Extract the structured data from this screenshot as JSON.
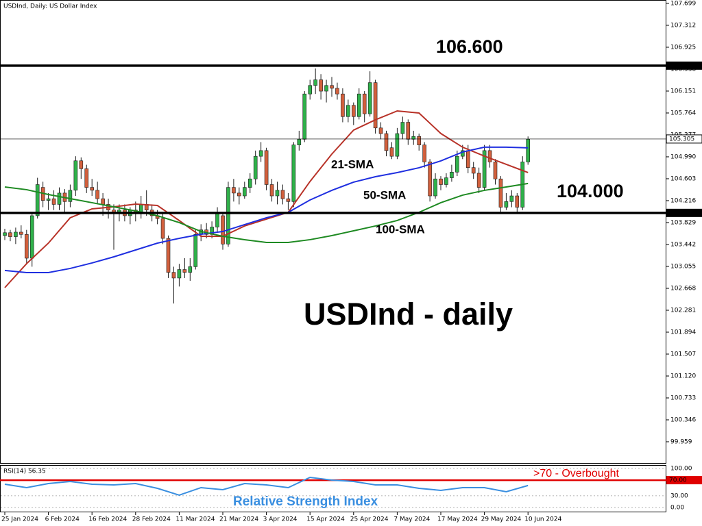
{
  "chart_data": [
    {
      "type": "candlestick",
      "title": "USDInd, Daily:  US Dollar Index",
      "categories": [
        "25 Jan 2024",
        null,
        null,
        null,
        null,
        null,
        null,
        null,
        "6 Feb 2024",
        null,
        null,
        null,
        null,
        null,
        null,
        null,
        "16 Feb 2024",
        null,
        null,
        null,
        null,
        null,
        null,
        null,
        "28 Feb 2024",
        null,
        null,
        null,
        null,
        null,
        null,
        null,
        "11 Mar 2024",
        null,
        null,
        null,
        null,
        null,
        null,
        null,
        "21 Mar 2024",
        null,
        null,
        null,
        null,
        null,
        null,
        null,
        "3 Apr 2024",
        null,
        null,
        null,
        null,
        null,
        null,
        null,
        "15 Apr 2024",
        null,
        null,
        null,
        null,
        null,
        null,
        null,
        "25 Apr 2024",
        null,
        null,
        null,
        null,
        null,
        null,
        null,
        "7 May 2024",
        null,
        null,
        null,
        null,
        null,
        null,
        null,
        "17 May 2024",
        null,
        null,
        null,
        null,
        null,
        null,
        null,
        "29 May 2024",
        null,
        null,
        null,
        null,
        null,
        null,
        null,
        "10 Jun 2024"
      ],
      "open": [
        103.6,
        103.65,
        103.58,
        103.66,
        103.62,
        103.2,
        103.95,
        104.45,
        104.22,
        104.25,
        104.15,
        104.35,
        104.2,
        104.4,
        104.92,
        104.78,
        104.45,
        104.4,
        104.25,
        104.15,
        104.05,
        104.0,
        104.05,
        103.95,
        104.05,
        104.0,
        104.15,
        104.05,
        103.95,
        103.9,
        103.55,
        102.95,
        102.85,
        103.0,
        102.95,
        103.05,
        103.62,
        103.7,
        103.62,
        103.75,
        103.95,
        103.45,
        104.45,
        104.35,
        104.3,
        104.45,
        104.6,
        105.0,
        105.1,
        104.5,
        104.3,
        104.4,
        104.25,
        104.2,
        105.2,
        105.3,
        106.1,
        106.25,
        106.35,
        106.15,
        106.25,
        106.2,
        106.1,
        105.7,
        105.9,
        105.7,
        106.1,
        105.75,
        106.3,
        105.5,
        105.4,
        105.15,
        105.0,
        105.4,
        105.6,
        105.3,
        105.35,
        105.2,
        104.9,
        104.3,
        104.6,
        104.5,
        104.62,
        104.72,
        105.0,
        105.1,
        104.8,
        104.7,
        104.45,
        105.1,
        104.9,
        104.6,
        104.1,
        104.2,
        104.3,
        104.1,
        104.9
      ],
      "high": [
        103.72,
        103.7,
        103.74,
        103.78,
        103.7,
        104.0,
        104.62,
        104.55,
        104.35,
        104.4,
        104.45,
        104.42,
        104.5,
        105.0,
        104.98,
        104.85,
        104.6,
        104.55,
        104.35,
        104.25,
        104.15,
        104.15,
        104.15,
        104.1,
        104.2,
        104.3,
        104.4,
        104.15,
        104.05,
        104.0,
        103.6,
        103.05,
        103.1,
        103.2,
        103.2,
        103.7,
        103.8,
        103.82,
        103.85,
        104.1,
        104.0,
        104.55,
        104.6,
        104.45,
        104.55,
        104.7,
        105.1,
        105.25,
        105.15,
        104.6,
        104.55,
        104.5,
        104.35,
        105.25,
        105.45,
        106.15,
        106.35,
        106.55,
        106.45,
        106.35,
        106.4,
        106.3,
        106.2,
        106.0,
        105.95,
        106.2,
        106.15,
        106.5,
        106.35,
        105.6,
        105.45,
        105.25,
        105.5,
        105.7,
        105.65,
        105.45,
        105.4,
        105.25,
        104.95,
        104.7,
        104.65,
        104.7,
        104.85,
        105.1,
        105.2,
        105.2,
        104.9,
        104.8,
        105.2,
        105.2,
        104.95,
        104.65,
        104.35,
        104.4,
        104.35,
        105.0,
        105.35
      ],
      "low": [
        103.52,
        103.5,
        103.45,
        103.55,
        103.1,
        103.05,
        103.9,
        104.1,
        104.05,
        104.05,
        104.05,
        104.0,
        104.1,
        104.3,
        104.6,
        104.35,
        104.3,
        104.15,
        103.95,
        103.9,
        103.35,
        103.85,
        103.85,
        103.8,
        103.85,
        103.9,
        103.95,
        103.85,
        103.8,
        103.45,
        102.85,
        102.4,
        102.7,
        102.85,
        102.8,
        103.0,
        103.5,
        103.55,
        103.55,
        103.65,
        103.35,
        103.4,
        104.2,
        104.15,
        104.25,
        104.35,
        104.5,
        104.9,
        104.4,
        104.2,
        104.15,
        104.15,
        104.05,
        104.1,
        105.1,
        105.25,
        106.0,
        106.1,
        106.0,
        105.95,
        106.05,
        106.0,
        105.6,
        105.6,
        105.55,
        105.65,
        105.6,
        105.7,
        105.4,
        105.3,
        105.0,
        104.95,
        104.95,
        105.3,
        105.2,
        105.2,
        105.1,
        104.8,
        104.2,
        104.25,
        104.4,
        104.45,
        104.55,
        104.65,
        104.95,
        104.7,
        104.6,
        104.35,
        104.4,
        104.8,
        104.5,
        104.0,
        104.05,
        104.1,
        104.0,
        104.05,
        104.85
      ],
      "close": [
        103.65,
        103.58,
        103.66,
        103.62,
        103.2,
        103.95,
        104.5,
        104.22,
        104.25,
        104.15,
        104.35,
        104.2,
        104.4,
        104.92,
        104.78,
        104.45,
        104.4,
        104.25,
        104.15,
        104.05,
        104.0,
        104.05,
        103.95,
        104.05,
        104.0,
        104.15,
        104.05,
        103.95,
        103.9,
        103.55,
        102.95,
        102.85,
        103.0,
        102.95,
        103.05,
        103.62,
        103.7,
        103.62,
        103.75,
        104.0,
        103.45,
        104.45,
        104.35,
        104.3,
        104.45,
        104.6,
        105.0,
        105.1,
        104.5,
        104.3,
        104.4,
        104.25,
        104.2,
        105.2,
        105.3,
        106.1,
        106.25,
        106.35,
        106.15,
        106.25,
        106.2,
        106.1,
        105.7,
        105.9,
        105.7,
        106.1,
        105.75,
        106.3,
        105.5,
        105.4,
        105.1,
        105.0,
        105.4,
        105.6,
        105.3,
        105.35,
        105.2,
        104.9,
        104.3,
        104.6,
        104.5,
        104.62,
        104.72,
        105.0,
        105.1,
        104.8,
        104.7,
        104.45,
        105.1,
        104.9,
        104.6,
        104.1,
        104.2,
        104.3,
        104.1,
        104.9,
        105.3
      ],
      "up_color": "#2fb14a",
      "down_color": "#d2603d",
      "wick_color": "#1a1a1a",
      "lines": [
        {
          "name": "21-SMA",
          "color": "#b83228",
          "x": [
            0,
            4,
            8,
            12,
            16,
            20,
            24,
            28,
            32,
            36,
            40,
            44,
            48,
            52,
            56,
            60,
            64,
            68,
            72,
            76,
            80,
            84,
            88,
            92,
            96
          ],
          "values": [
            102.68,
            103.104,
            103.466,
            103.914,
            104.071,
            104.107,
            104.155,
            104.131,
            103.865,
            103.587,
            103.587,
            103.769,
            103.89,
            104.01,
            104.555,
            105.038,
            105.462,
            105.643,
            105.8,
            105.764,
            105.402,
            105.16,
            105.002,
            104.857,
            104.712
          ]
        },
        {
          "name": "50-SMA",
          "color": "#1f2fe0",
          "x": [
            0,
            4,
            8,
            12,
            16,
            20,
            24,
            28,
            32,
            36,
            40,
            44,
            48,
            52,
            56,
            60,
            64,
            68,
            72,
            76,
            80,
            84,
            88,
            92,
            96
          ],
          "values": [
            102.983,
            102.946,
            102.946,
            103.019,
            103.116,
            103.224,
            103.345,
            103.466,
            103.551,
            103.623,
            103.671,
            103.793,
            103.914,
            104.01,
            104.228,
            104.398,
            104.543,
            104.639,
            104.712,
            104.797,
            104.918,
            105.075,
            105.16,
            105.16,
            105.148
          ]
        },
        {
          "name": "100-SMA",
          "color": "#1e8a22",
          "x": [
            0,
            4,
            8,
            12,
            16,
            20,
            24,
            28,
            32,
            36,
            40,
            44,
            48,
            52,
            56,
            60,
            64,
            68,
            72,
            76,
            80,
            84,
            88,
            92,
            96
          ],
          "values": [
            104.458,
            104.41,
            104.325,
            104.252,
            104.18,
            104.107,
            104.035,
            103.95,
            103.829,
            103.672,
            103.587,
            103.527,
            103.478,
            103.478,
            103.527,
            103.599,
            103.684,
            103.769,
            103.866,
            104.01,
            104.18,
            104.313,
            104.398,
            104.458,
            104.519
          ]
        }
      ],
      "levels": [
        {
          "value": 106.6,
          "label": "106.600"
        },
        {
          "value": 104,
          "label": "104.000"
        }
      ],
      "last_price": {
        "value": 105.305,
        "label": "105.305"
      },
      "annotations": [
        "106.600",
        "104.000",
        "USDInd - daily"
      ],
      "ylim": [
        99.584,
        107.759
      ],
      "yticks": [
        107.699,
        107.312,
        106.925,
        106.538,
        106.151,
        105.764,
        105.377,
        {
          "value": 104.99,
          "label": "104.990"
        },
        104.603,
        104.216,
        103.829,
        103.442,
        103.055,
        102.668,
        102.281,
        101.894,
        101.507,
        {
          "value": 101.12,
          "label": "101.120"
        },
        100.733,
        100.346,
        99.959
      ]
    },
    {
      "type": "line",
      "title": "RSI(14) 56.35",
      "x": [
        0,
        4,
        8,
        12,
        16,
        20,
        24,
        28,
        32,
        36,
        40,
        44,
        48,
        52,
        56,
        60,
        64,
        68,
        72,
        76,
        80,
        84,
        88,
        92,
        96
      ],
      "values": [
        59.6,
        50.9,
        61.4,
        66.7,
        59.6,
        57.9,
        61.4,
        49.1,
        31.6,
        50.9,
        45.6,
        61.4,
        57.9,
        50.9,
        77.2,
        70.2,
        66.7,
        57.9,
        57.9,
        49.1,
        43.9,
        50.9,
        50.9,
        40.4,
        56.35
      ],
      "color": "#3a8fe0",
      "levels": [
        {
          "value": 70,
          "label": "70.00",
          "color": "#e00000"
        }
      ],
      "annotations": [
        ">70 - Overbought",
        "Relative Strength Index"
      ],
      "ylim": [
        -12.3,
        107
      ],
      "yticks": [
        {
          "value": 100,
          "label": "100.00"
        },
        {
          "value": 30,
          "label": "30.00"
        },
        {
          "value": 0,
          "label": "0.00"
        }
      ]
    }
  ]
}
